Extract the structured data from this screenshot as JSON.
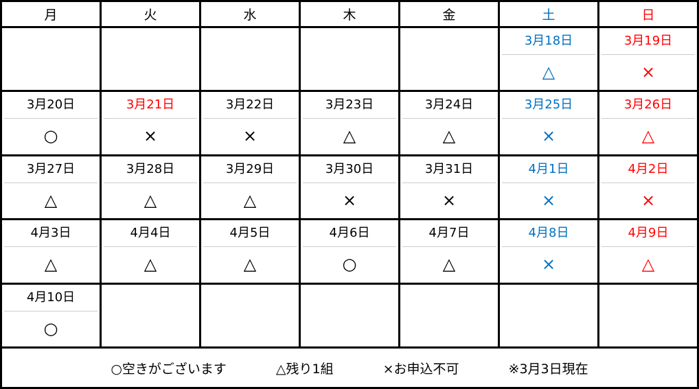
{
  "columns": [
    {
      "label": "月"
    },
    {
      "label": "火"
    },
    {
      "label": "水"
    },
    {
      "label": "木"
    },
    {
      "label": "金"
    },
    {
      "label": "土",
      "color": "#0070c0"
    },
    {
      "label": "日",
      "color": "#ff0000"
    }
  ],
  "holiday_color": "#ff0000",
  "weeks": [
    [
      null,
      null,
      null,
      null,
      null,
      {
        "date": "3月18日",
        "status": "△"
      },
      {
        "date": "3月19日",
        "status": "×"
      }
    ],
    [
      {
        "date": "3月20日",
        "status": "○"
      },
      {
        "date": "3月21日",
        "status": "×",
        "holiday": true
      },
      {
        "date": "3月22日",
        "status": "×"
      },
      {
        "date": "3月23日",
        "status": "△"
      },
      {
        "date": "3月24日",
        "status": "△"
      },
      {
        "date": "3月25日",
        "status": "×"
      },
      {
        "date": "3月26日",
        "status": "△"
      }
    ],
    [
      {
        "date": "3月27日",
        "status": "△"
      },
      {
        "date": "3月28日",
        "status": "△"
      },
      {
        "date": "3月29日",
        "status": "△"
      },
      {
        "date": "3月30日",
        "status": "×"
      },
      {
        "date": "3月31日",
        "status": "×"
      },
      {
        "date": "4月1日",
        "status": "×"
      },
      {
        "date": "4月2日",
        "status": "×"
      }
    ],
    [
      {
        "date": "4月3日",
        "status": "△"
      },
      {
        "date": "4月4日",
        "status": "△"
      },
      {
        "date": "4月5日",
        "status": "△"
      },
      {
        "date": "4月6日",
        "status": "○"
      },
      {
        "date": "4月7日",
        "status": "△"
      },
      {
        "date": "4月8日",
        "status": "×"
      },
      {
        "date": "4月9日",
        "status": "△"
      }
    ],
    [
      {
        "date": "4月10日",
        "status": "○"
      },
      null,
      null,
      null,
      null,
      null,
      null
    ]
  ],
  "legend": [
    "○空きがございます",
    "△残り1組",
    "×お申込不可",
    "※3月3日現在"
  ]
}
